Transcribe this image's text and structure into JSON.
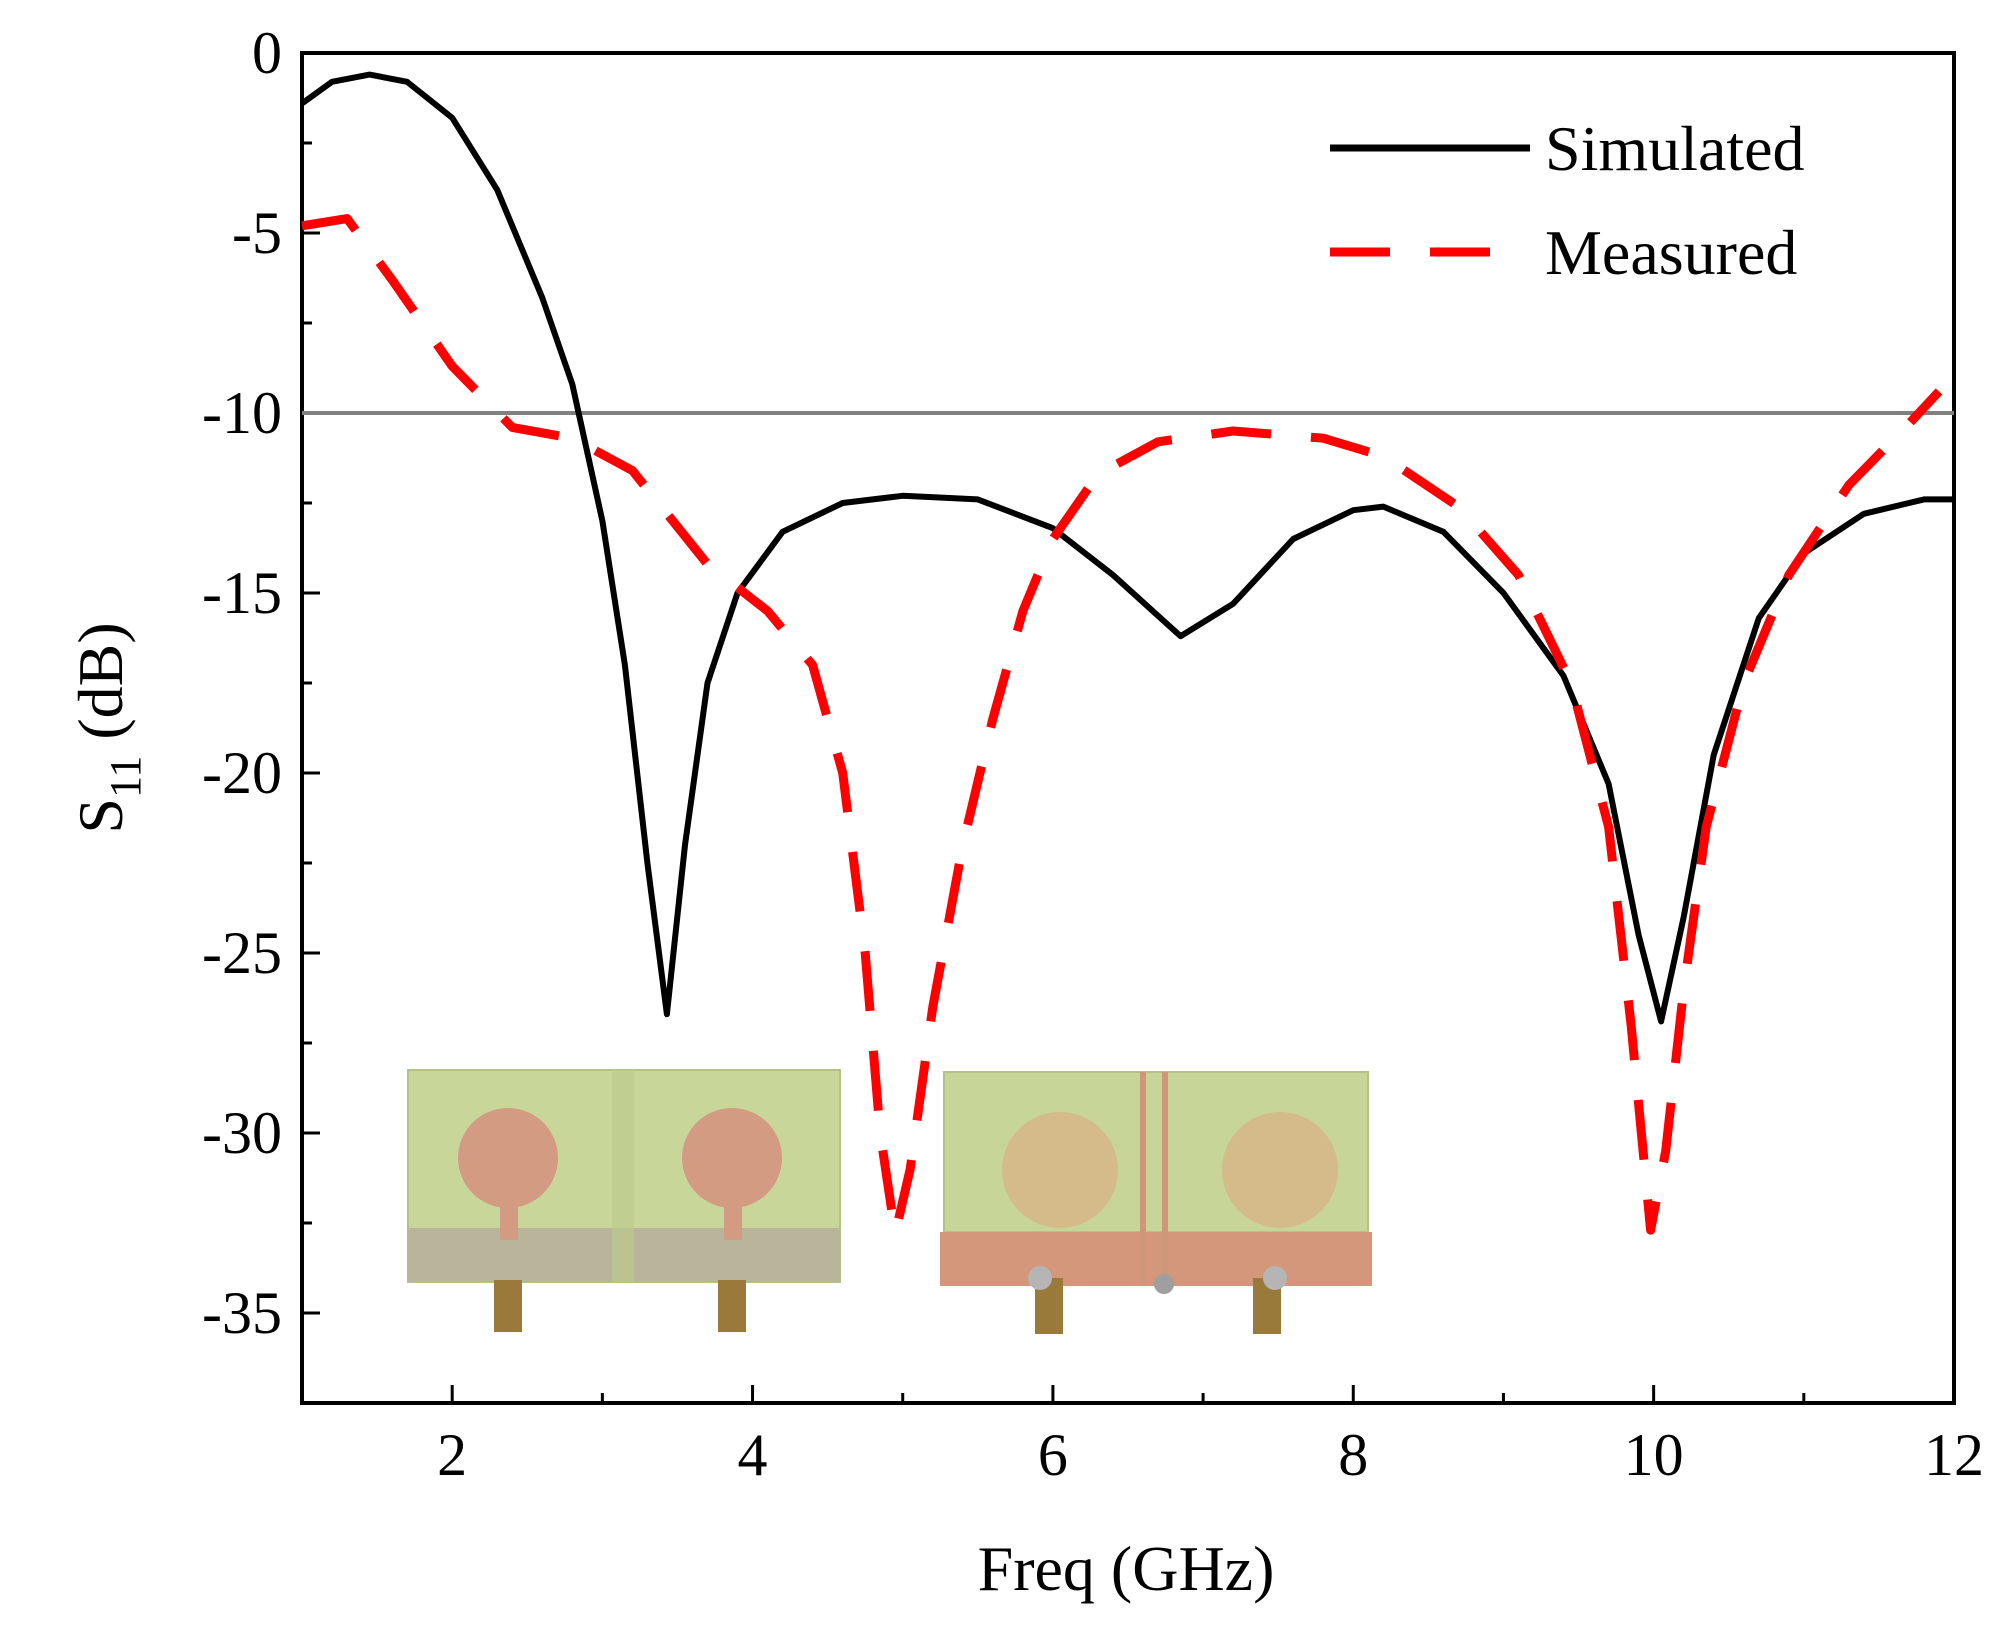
{
  "chart_data": {
    "type": "line",
    "xlabel": "Freq (GHz)",
    "ylabel": "S",
    "ylabel_subscript": "11",
    "ylabel_unit": " (dB)",
    "xlim": [
      1,
      12
    ],
    "ylim": [
      -37.5,
      0
    ],
    "xticks": [
      2,
      4,
      6,
      8,
      10,
      12
    ],
    "xtick_labels": [
      "2",
      "4",
      "6",
      "8",
      "10",
      "12"
    ],
    "yticks": [
      0,
      -5,
      -10,
      -15,
      -20,
      -25,
      -30,
      -35
    ],
    "ytick_labels": [
      "0",
      "-5",
      "-10",
      "-15",
      "-20",
      "-25",
      "-30",
      "-35"
    ],
    "grid": false,
    "legend_position": "top-right",
    "reference_line": {
      "y": -10,
      "color": "#808080"
    },
    "series": [
      {
        "name": "Simulated",
        "color": "#000000",
        "style": "solid",
        "points": [
          [
            1.0,
            -1.4
          ],
          [
            1.2,
            -0.8
          ],
          [
            1.45,
            -0.6
          ],
          [
            1.7,
            -0.8
          ],
          [
            2.0,
            -1.8
          ],
          [
            2.3,
            -3.8
          ],
          [
            2.6,
            -6.8
          ],
          [
            2.8,
            -9.2
          ],
          [
            3.0,
            -13.0
          ],
          [
            3.15,
            -17.0
          ],
          [
            3.3,
            -22.5
          ],
          [
            3.43,
            -26.7
          ],
          [
            3.55,
            -22.0
          ],
          [
            3.7,
            -17.5
          ],
          [
            3.9,
            -15.0
          ],
          [
            4.2,
            -13.3
          ],
          [
            4.6,
            -12.5
          ],
          [
            5.0,
            -12.3
          ],
          [
            5.5,
            -12.4
          ],
          [
            6.0,
            -13.2
          ],
          [
            6.4,
            -14.5
          ],
          [
            6.85,
            -16.2
          ],
          [
            7.2,
            -15.3
          ],
          [
            7.6,
            -13.5
          ],
          [
            8.0,
            -12.7
          ],
          [
            8.2,
            -12.6
          ],
          [
            8.6,
            -13.3
          ],
          [
            9.0,
            -15.0
          ],
          [
            9.4,
            -17.3
          ],
          [
            9.7,
            -20.3
          ],
          [
            9.9,
            -24.5
          ],
          [
            10.05,
            -26.9
          ],
          [
            10.2,
            -24.0
          ],
          [
            10.4,
            -19.5
          ],
          [
            10.7,
            -15.7
          ],
          [
            11.0,
            -13.9
          ],
          [
            11.4,
            -12.8
          ],
          [
            11.8,
            -12.4
          ],
          [
            12.0,
            -12.4
          ]
        ]
      },
      {
        "name": "Measured",
        "color": "#ff0000",
        "style": "dashed",
        "points": [
          [
            1.0,
            -4.8
          ],
          [
            1.3,
            -4.6
          ],
          [
            1.6,
            -6.3
          ],
          [
            2.0,
            -8.7
          ],
          [
            2.4,
            -10.4
          ],
          [
            2.8,
            -10.7
          ],
          [
            3.2,
            -11.6
          ],
          [
            3.7,
            -14.2
          ],
          [
            4.1,
            -15.5
          ],
          [
            4.4,
            -17.0
          ],
          [
            4.6,
            -20.0
          ],
          [
            4.75,
            -25.0
          ],
          [
            4.85,
            -30.0
          ],
          [
            4.95,
            -32.8
          ],
          [
            5.05,
            -31.0
          ],
          [
            5.2,
            -26.5
          ],
          [
            5.4,
            -22.0
          ],
          [
            5.6,
            -18.5
          ],
          [
            5.8,
            -15.5
          ],
          [
            6.0,
            -13.5
          ],
          [
            6.3,
            -11.7
          ],
          [
            6.7,
            -10.8
          ],
          [
            7.2,
            -10.5
          ],
          [
            7.8,
            -10.7
          ],
          [
            8.2,
            -11.2
          ],
          [
            8.7,
            -12.6
          ],
          [
            9.1,
            -14.5
          ],
          [
            9.45,
            -17.5
          ],
          [
            9.7,
            -21.5
          ],
          [
            9.85,
            -27.0
          ],
          [
            9.98,
            -32.7
          ],
          [
            10.08,
            -30.5
          ],
          [
            10.2,
            -26.0
          ],
          [
            10.35,
            -21.5
          ],
          [
            10.6,
            -17.5
          ],
          [
            10.9,
            -14.5
          ],
          [
            11.3,
            -12.0
          ],
          [
            11.7,
            -10.3
          ],
          [
            11.9,
            -9.4
          ]
        ]
      }
    ],
    "inset_images": [
      {
        "label": "antenna-front-photo"
      },
      {
        "label": "antenna-back-photo"
      }
    ]
  }
}
